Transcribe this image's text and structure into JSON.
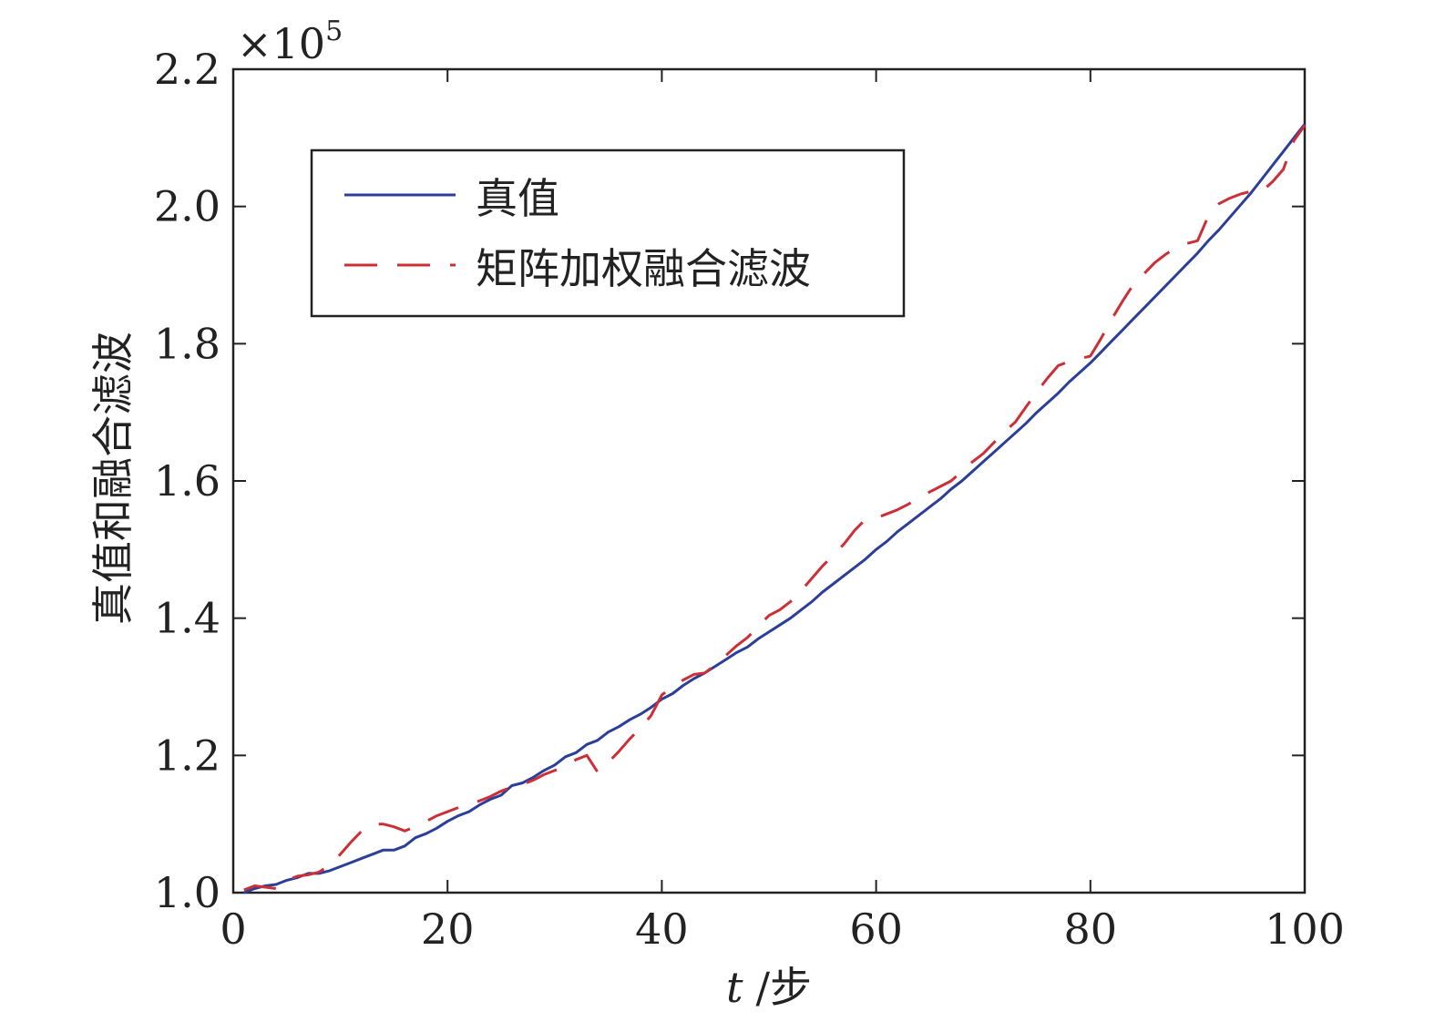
{
  "chart_data": {
    "type": "line",
    "xlabel_var": "t",
    "xlabel_unit": "/步",
    "ylabel": "真值和融合滤波",
    "y_multiplier": "×10",
    "y_multiplier_exp": "5",
    "xlim": [
      0,
      100
    ],
    "ylim": [
      1.0,
      2.2
    ],
    "xticks": [
      0,
      20,
      40,
      60,
      80,
      100
    ],
    "xtick_labels": [
      "0",
      "20",
      "40",
      "60",
      "80",
      "100"
    ],
    "yticks": [
      1.0,
      1.2,
      1.4,
      1.6,
      1.8,
      2.0,
      2.2
    ],
    "ytick_labels": [
      "1.0",
      "1.2",
      "1.4",
      "1.6",
      "1.8",
      "2.0",
      "2.2"
    ],
    "legend_position": "upper-left",
    "series": [
      {
        "name": "真值",
        "color": "#2b3f99",
        "dash": "solid",
        "x": [
          1,
          2,
          3,
          4,
          5,
          6,
          7,
          8,
          9,
          10,
          11,
          12,
          13,
          14,
          15,
          16,
          17,
          18,
          19,
          20,
          21,
          22,
          23,
          24,
          25,
          26,
          27,
          28,
          29,
          30,
          31,
          32,
          33,
          34,
          35,
          36,
          37,
          38,
          39,
          40,
          41,
          42,
          43,
          44,
          45,
          46,
          47,
          48,
          49,
          50,
          51,
          52,
          53,
          54,
          55,
          56,
          57,
          58,
          59,
          60,
          61,
          62,
          63,
          64,
          65,
          66,
          67,
          68,
          69,
          70,
          71,
          72,
          73,
          74,
          75,
          76,
          77,
          78,
          79,
          80,
          81,
          82,
          83,
          84,
          85,
          86,
          87,
          88,
          89,
          90,
          91,
          92,
          93,
          94,
          95,
          96,
          97,
          98,
          99,
          100
        ],
        "y": [
          1.0,
          1.006,
          1.01,
          1.012,
          1.018,
          1.022,
          1.028,
          1.028,
          1.032,
          1.038,
          1.044,
          1.05,
          1.056,
          1.062,
          1.062,
          1.068,
          1.08,
          1.086,
          1.094,
          1.104,
          1.112,
          1.118,
          1.128,
          1.136,
          1.142,
          1.156,
          1.16,
          1.168,
          1.178,
          1.186,
          1.198,
          1.204,
          1.216,
          1.222,
          1.234,
          1.242,
          1.252,
          1.26,
          1.27,
          1.282,
          1.29,
          1.302,
          1.312,
          1.32,
          1.33,
          1.34,
          1.35,
          1.358,
          1.37,
          1.38,
          1.39,
          1.4,
          1.412,
          1.424,
          1.438,
          1.45,
          1.462,
          1.474,
          1.486,
          1.5,
          1.512,
          1.526,
          1.538,
          1.55,
          1.562,
          1.574,
          1.588,
          1.6,
          1.614,
          1.628,
          1.642,
          1.656,
          1.67,
          1.684,
          1.7,
          1.714,
          1.728,
          1.744,
          1.758,
          1.772,
          1.788,
          1.804,
          1.82,
          1.836,
          1.852,
          1.868,
          1.884,
          1.9,
          1.916,
          1.932,
          1.95,
          1.966,
          1.984,
          2.002,
          2.02,
          2.04,
          2.06,
          2.08,
          2.1,
          2.12
        ]
      },
      {
        "name": "矩阵加权融合滤波",
        "color": "#cc2f36",
        "dash": "dashed",
        "x": [
          1,
          2,
          3,
          4,
          5,
          6,
          7,
          8,
          9,
          10,
          11,
          12,
          13,
          14,
          15,
          16,
          17,
          18,
          19,
          20,
          21,
          22,
          23,
          24,
          25,
          26,
          27,
          28,
          29,
          30,
          31,
          32,
          33,
          34,
          35,
          36,
          37,
          38,
          39,
          40,
          41,
          42,
          43,
          44,
          45,
          46,
          47,
          48,
          49,
          50,
          51,
          52,
          53,
          54,
          55,
          56,
          57,
          58,
          59,
          60,
          61,
          62,
          63,
          64,
          65,
          66,
          67,
          68,
          69,
          70,
          71,
          72,
          73,
          74,
          75,
          76,
          77,
          78,
          79,
          80,
          81,
          82,
          83,
          84,
          85,
          86,
          87,
          88,
          89,
          90,
          91,
          92,
          93,
          94,
          95,
          96,
          97,
          98,
          99,
          100
        ],
        "y": [
          1.004,
          1.01,
          1.008,
          1.006,
          1.018,
          1.024,
          1.026,
          1.03,
          1.04,
          1.056,
          1.074,
          1.09,
          1.1,
          1.1,
          1.096,
          1.09,
          1.096,
          1.104,
          1.112,
          1.118,
          1.124,
          1.128,
          1.134,
          1.14,
          1.148,
          1.154,
          1.158,
          1.164,
          1.172,
          1.178,
          1.184,
          1.194,
          1.2,
          1.176,
          1.19,
          1.206,
          1.224,
          1.24,
          1.258,
          1.288,
          1.3,
          1.31,
          1.318,
          1.32,
          1.332,
          1.346,
          1.36,
          1.372,
          1.388,
          1.404,
          1.412,
          1.424,
          1.44,
          1.458,
          1.476,
          1.492,
          1.508,
          1.528,
          1.544,
          1.546,
          1.552,
          1.558,
          1.566,
          1.576,
          1.584,
          1.592,
          1.6,
          1.614,
          1.628,
          1.64,
          1.656,
          1.672,
          1.686,
          1.708,
          1.73,
          1.75,
          1.768,
          1.774,
          1.778,
          1.782,
          1.808,
          1.836,
          1.862,
          1.886,
          1.902,
          1.918,
          1.93,
          1.94,
          1.946,
          1.95,
          1.986,
          2.004,
          2.012,
          2.018,
          2.022,
          2.022,
          2.036,
          2.054,
          2.096,
          2.118
        ]
      }
    ]
  }
}
